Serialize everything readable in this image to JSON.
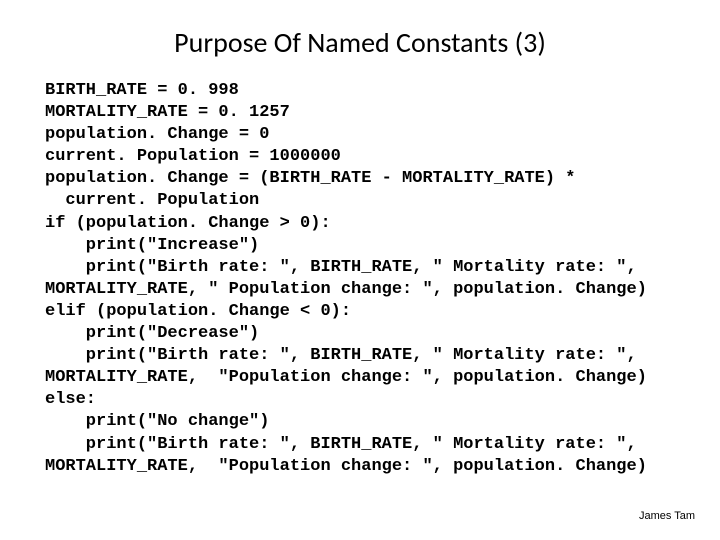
{
  "slide": {
    "title": "Purpose Of Named Constants (3)",
    "background_color": "#ffffff",
    "title_color": "#000000",
    "title_fontsize": 28,
    "code_fontsize": 17,
    "code_color": "#000000",
    "code_font": "Courier New",
    "footer_text": "James Tam",
    "footer_fontsize": 11
  },
  "code_lines": [
    "BIRTH_RATE = 0. 998",
    "MORTALITY_RATE = 0. 1257",
    "population. Change = 0",
    "current. Population = 1000000",
    "population. Change = (BIRTH_RATE - MORTALITY_RATE) *",
    "  current. Population",
    "if (population. Change > 0):",
    "    print(\"Increase\")",
    "    print(\"Birth rate: \", BIRTH_RATE, \" Mortality rate: \",",
    "MORTALITY_RATE, \" Population change: \", population. Change)",
    "elif (population. Change < 0):",
    "    print(\"Decrease\")",
    "    print(\"Birth rate: \", BIRTH_RATE, \" Mortality rate: \",",
    "MORTALITY_RATE,  \"Population change: \", population. Change)",
    "else:",
    "    print(\"No change\")",
    "    print(\"Birth rate: \", BIRTH_RATE, \" Mortality rate: \",",
    "MORTALITY_RATE,  \"Population change: \", population. Change)"
  ]
}
